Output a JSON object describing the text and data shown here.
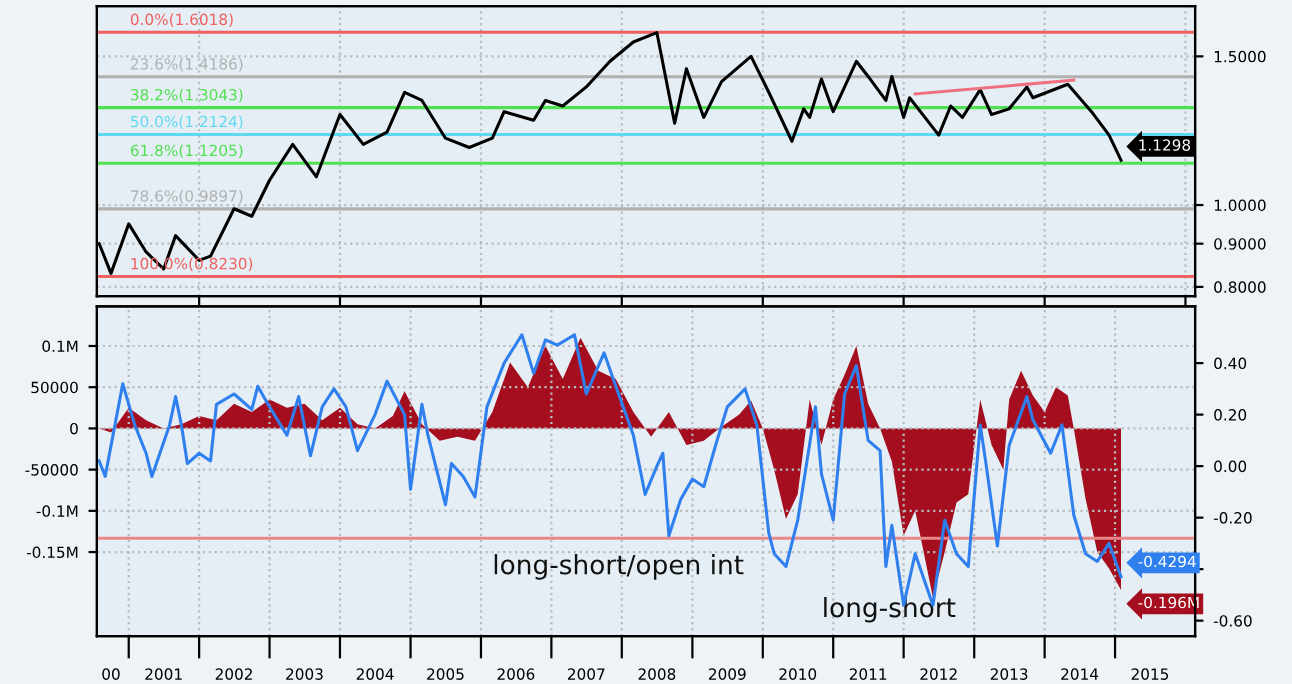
{
  "chart_data": [
    {
      "type": "line",
      "x": [
        "2000-08",
        "2000-10",
        "2001-01",
        "2001-04",
        "2001-07",
        "2001-09",
        "2002-01",
        "2002-03",
        "2002-07",
        "2002-10",
        "2003-01",
        "2003-05",
        "2003-09",
        "2004-01",
        "2004-05",
        "2004-09",
        "2004-12",
        "2005-03",
        "2005-07",
        "2005-11",
        "2006-03",
        "2006-05",
        "2006-10",
        "2006-12",
        "2007-03",
        "2007-07",
        "2007-11",
        "2008-03",
        "2008-07",
        "2008-10",
        "2008-12",
        "2009-03",
        "2009-06",
        "2009-11",
        "2010-02",
        "2010-06",
        "2010-08",
        "2010-09",
        "2010-11",
        "2011-01",
        "2011-05",
        "2011-07",
        "2011-10",
        "2011-11",
        "2012-01",
        "2012-02",
        "2012-07",
        "2012-09",
        "2012-11",
        "2013-02",
        "2013-04",
        "2013-07",
        "2013-10",
        "2013-11",
        "2014-05",
        "2014-09",
        "2014-12",
        "2015-02"
      ],
      "series": [
        {
          "color": "#000000",
          "axis": "y2",
          "values": [
            0.9,
            0.83,
            0.95,
            0.88,
            0.84,
            0.92,
            0.86,
            0.87,
            0.99,
            0.97,
            1.07,
            1.18,
            1.08,
            1.28,
            1.18,
            1.22,
            1.36,
            1.33,
            1.2,
            1.17,
            1.2,
            1.29,
            1.26,
            1.33,
            1.31,
            1.38,
            1.48,
            1.56,
            1.6,
            1.25,
            1.45,
            1.27,
            1.4,
            1.5,
            1.36,
            1.19,
            1.3,
            1.27,
            1.41,
            1.29,
            1.48,
            1.42,
            1.33,
            1.42,
            1.27,
            1.34,
            1.21,
            1.31,
            1.27,
            1.37,
            1.28,
            1.3,
            1.38,
            1.34,
            1.39,
            1.29,
            1.21,
            1.1298
          ],
          "value_labels": [
            null,
            null,
            null,
            null,
            null,
            null,
            null,
            null,
            null,
            null,
            null,
            null,
            null,
            null,
            null,
            null,
            null,
            null,
            null,
            null,
            null,
            null,
            null,
            null,
            null,
            null,
            null,
            null,
            null,
            null,
            null,
            null,
            null,
            null,
            null,
            null,
            null,
            null,
            null,
            null,
            null,
            null,
            null,
            null,
            null,
            null,
            null,
            null,
            null,
            null,
            null,
            null,
            null,
            null,
            null,
            null,
            null,
            "1.1298"
          ]
        },
        {
          "type": "line",
          "color": "#f07080",
          "axis": "y2",
          "x": [
            "2012-03",
            "2014-06"
          ],
          "values": [
            1.354,
            1.406
          ]
        }
      ],
      "xlim": [
        "2000-07-20",
        "2016-02-20"
      ],
      "xticks": [
        {
          "value": "2002-01-01",
          "label": null
        },
        {
          "value": "2004-01-01",
          "label": null
        },
        {
          "value": "2006-01-01",
          "label": null
        },
        {
          "value": "2008-01-01",
          "label": null
        },
        {
          "value": "2010-01-01",
          "label": null
        },
        {
          "value": "2012-01-01",
          "label": null
        },
        {
          "value": "2014-01-01",
          "label": null
        },
        {
          "value": "2016-01-01",
          "label": null
        }
      ],
      "log": "y2",
      "y2lim": [
        0.78,
        1.72
      ],
      "y2ticks": [
        {
          "value": 0.8,
          "label": "0.8000"
        },
        {
          "value": 0.9,
          "label": "0.9000"
        },
        {
          "value": 1.0,
          "label": "1.0000"
        },
        {
          "value": 1.5,
          "label": "1.5000"
        }
      ],
      "ref_lines": [
        {
          "axis": "y2",
          "value": 1.6018,
          "label": "0.0%(1.6018)",
          "color": "#f06060"
        },
        {
          "axis": "y2",
          "value": 1.4186,
          "label": "23.6%(1.4186)",
          "color": "#b0b0b0"
        },
        {
          "axis": "y2",
          "value": 1.3043,
          "label": "38.2%(1.3043)",
          "color": "#50e050"
        },
        {
          "axis": "y2",
          "value": 1.2124,
          "label": "50.0%(1.2124)",
          "color": "#60d8f0"
        },
        {
          "axis": "y2",
          "value": 1.1205,
          "label": "61.8%(1.1205)",
          "color": "#50e050"
        },
        {
          "axis": "y2",
          "value": 0.9897,
          "label": "78.6%(0.9897)",
          "color": "#b0b0b0"
        },
        {
          "axis": "y2",
          "value": 0.823,
          "label": "100.0%(0.8230)",
          "color": "#f06060"
        }
      ],
      "grid": true,
      "tick_labels": "y"
    },
    {
      "type": "area",
      "series": [
        {
          "name": "long-short",
          "color": "#a50e1f",
          "x": [
            "2000-08",
            "2000-10",
            "2001-01",
            "2001-04",
            "2001-07",
            "2001-10",
            "2002-01",
            "2002-04",
            "2002-07",
            "2002-10",
            "2003-01",
            "2003-04",
            "2003-07",
            "2003-10",
            "2004-01",
            "2004-04",
            "2004-07",
            "2004-10",
            "2004-12",
            "2005-03",
            "2005-06",
            "2005-09",
            "2005-12",
            "2006-03",
            "2006-06",
            "2006-09",
            "2006-12",
            "2007-03",
            "2007-06",
            "2007-09",
            "2007-12",
            "2008-03",
            "2008-06",
            "2008-09",
            "2008-12",
            "2009-03",
            "2009-06",
            "2009-09",
            "2009-11",
            "2010-01",
            "2010-03",
            "2010-05",
            "2010-07",
            "2010-09",
            "2010-11",
            "2011-01",
            "2011-03",
            "2011-05",
            "2011-07",
            "2011-09",
            "2011-11",
            "2012-01",
            "2012-03",
            "2012-06",
            "2012-08",
            "2012-10",
            "2012-12",
            "2013-02",
            "2013-04",
            "2013-06",
            "2013-07",
            "2013-09",
            "2013-11",
            "2014-01",
            "2014-03",
            "2014-05",
            "2014-06",
            "2014-08",
            "2014-10",
            "2014-12",
            "2015-02"
          ],
          "values": [
            0,
            -5000,
            25000,
            10000,
            0,
            5000,
            15000,
            10000,
            30000,
            20000,
            35000,
            25000,
            30000,
            10000,
            25000,
            5000,
            0,
            15000,
            45000,
            5000,
            -15000,
            -10000,
            -15000,
            20000,
            80000,
            50000,
            100000,
            60000,
            110000,
            70000,
            60000,
            20000,
            -10000,
            20000,
            -20000,
            -15000,
            2000,
            17000,
            34000,
            0,
            -50000,
            -110000,
            -80000,
            35000,
            -20000,
            35000,
            65000,
            100000,
            30000,
            0,
            -40000,
            -130000,
            -100000,
            -205000,
            -150000,
            -90000,
            -80000,
            35000,
            -20000,
            -50000,
            35000,
            70000,
            40000,
            20000,
            50000,
            40000,
            0,
            -85000,
            -150000,
            -170000,
            -196000
          ],
          "value_labels": [
            null,
            null,
            null,
            null,
            null,
            null,
            null,
            null,
            null,
            null,
            null,
            null,
            null,
            null,
            null,
            null,
            null,
            null,
            null,
            null,
            null,
            null,
            null,
            null,
            null,
            null,
            null,
            null,
            null,
            null,
            null,
            null,
            null,
            null,
            null,
            null,
            null,
            null,
            null,
            null,
            null,
            null,
            null,
            null,
            null,
            null,
            null,
            null,
            null,
            null,
            null,
            null,
            null,
            null,
            null,
            null,
            null,
            null,
            null,
            null,
            null,
            null,
            null,
            null,
            null,
            null,
            null,
            null,
            null,
            null,
            "-0.196M"
          ]
        },
        {
          "name": "long-short/open int",
          "type": "line",
          "color": "#2f80ee",
          "axis": "y2",
          "x": [
            "2000-08",
            "2000-09",
            "2000-12",
            "2001-02",
            "2001-04",
            "2001-05",
            "2001-08",
            "2001-09",
            "2001-10",
            "2001-11",
            "2002-01",
            "2002-03",
            "2002-04",
            "2002-07",
            "2002-10",
            "2002-11",
            "2003-01",
            "2003-04",
            "2003-06",
            "2003-08",
            "2003-10",
            "2003-12",
            "2004-02",
            "2004-04",
            "2004-07",
            "2004-09",
            "2004-12",
            "2005-01",
            "2005-03",
            "2005-04",
            "2005-07",
            "2005-08",
            "2005-10",
            "2005-12",
            "2006-02",
            "2006-05",
            "2006-08",
            "2006-10",
            "2006-12",
            "2007-02",
            "2007-05",
            "2007-07",
            "2007-10",
            "2007-12",
            "2008-03",
            "2008-05",
            "2008-07",
            "2008-08",
            "2008-09",
            "2008-11",
            "2009-01",
            "2009-03",
            "2009-05",
            "2009-07",
            "2009-10",
            "2009-12",
            "2010-02",
            "2010-03",
            "2010-05",
            "2010-07",
            "2010-10",
            "2010-11",
            "2011-01",
            "2011-03",
            "2011-05",
            "2011-07",
            "2011-09",
            "2011-10",
            "2011-11",
            "2012-01",
            "2012-03",
            "2012-06",
            "2012-08",
            "2012-10",
            "2012-12",
            "2013-02",
            "2013-03",
            "2013-05",
            "2013-07",
            "2013-10",
            "2013-11",
            "2014-02",
            "2014-04",
            "2014-06",
            "2014-08",
            "2014-10",
            "2014-12",
            "2015-02"
          ],
          "values": [
            0.02,
            -0.04,
            0.32,
            0.16,
            0.05,
            -0.04,
            0.16,
            0.27,
            0.16,
            0.01,
            0.05,
            0.02,
            0.24,
            0.28,
            0.22,
            0.31,
            0.23,
            0.12,
            0.27,
            0.04,
            0.23,
            0.3,
            0.23,
            0.06,
            0.2,
            0.33,
            0.2,
            -0.09,
            0.24,
            0.12,
            -0.15,
            0.01,
            -0.04,
            -0.12,
            0.23,
            0.4,
            0.51,
            0.36,
            0.49,
            0.47,
            0.51,
            0.28,
            0.44,
            0.31,
            0.12,
            -0.11,
            0.0,
            0.05,
            -0.27,
            -0.13,
            -0.05,
            -0.08,
            0.08,
            0.23,
            0.3,
            0.16,
            -0.26,
            -0.34,
            -0.39,
            -0.21,
            0.23,
            -0.03,
            -0.21,
            0.28,
            0.39,
            0.1,
            0.06,
            -0.39,
            -0.23,
            -0.54,
            -0.34,
            -0.54,
            -0.21,
            -0.34,
            -0.39,
            0.16,
            0.02,
            -0.31,
            0.08,
            0.27,
            0.18,
            0.05,
            0.16,
            -0.19,
            -0.34,
            -0.37,
            -0.3,
            -0.4294
          ],
          "value_labels": [
            null,
            null,
            null,
            null,
            null,
            null,
            null,
            null,
            null,
            null,
            null,
            null,
            null,
            null,
            null,
            null,
            null,
            null,
            null,
            null,
            null,
            null,
            null,
            null,
            null,
            null,
            null,
            null,
            null,
            null,
            null,
            null,
            null,
            null,
            null,
            null,
            null,
            null,
            null,
            null,
            null,
            null,
            null,
            null,
            null,
            null,
            null,
            null,
            null,
            null,
            null,
            null,
            null,
            null,
            null,
            null,
            null,
            null,
            null,
            null,
            null,
            null,
            null,
            null,
            null,
            null,
            null,
            null,
            null,
            null,
            null,
            null,
            null,
            null,
            null,
            null,
            null,
            null,
            null,
            null,
            null,
            null,
            null,
            null,
            null,
            null,
            null,
            "-0.4294"
          ]
        }
      ],
      "xlim": [
        "2000-07-20",
        "2016-02-20"
      ],
      "xticks": [
        {
          "value": "2000-10-01",
          "label": "00"
        },
        {
          "value": "2001-01-01",
          "label": null
        },
        {
          "value": "2001-07-01",
          "label": "2001"
        },
        {
          "value": "2002-01-01",
          "label": null
        },
        {
          "value": "2002-07-01",
          "label": "2002"
        },
        {
          "value": "2003-01-01",
          "label": null
        },
        {
          "value": "2003-07-01",
          "label": "2003"
        },
        {
          "value": "2004-01-01",
          "label": null
        },
        {
          "value": "2004-07-01",
          "label": "2004"
        },
        {
          "value": "2005-01-01",
          "label": null
        },
        {
          "value": "2005-07-01",
          "label": "2005"
        },
        {
          "value": "2006-01-01",
          "label": null
        },
        {
          "value": "2006-07-01",
          "label": "2006"
        },
        {
          "value": "2007-01-01",
          "label": null
        },
        {
          "value": "2007-07-01",
          "label": "2007"
        },
        {
          "value": "2008-01-01",
          "label": null
        },
        {
          "value": "2008-07-01",
          "label": "2008"
        },
        {
          "value": "2009-01-01",
          "label": null
        },
        {
          "value": "2009-07-01",
          "label": "2009"
        },
        {
          "value": "2010-01-01",
          "label": null
        },
        {
          "value": "2010-07-01",
          "label": "2010"
        },
        {
          "value": "2011-01-01",
          "label": null
        },
        {
          "value": "2011-07-01",
          "label": "2011"
        },
        {
          "value": "2012-01-01",
          "label": null
        },
        {
          "value": "2012-07-01",
          "label": "2012"
        },
        {
          "value": "2013-01-01",
          "label": null
        },
        {
          "value": "2013-07-01",
          "label": "2013"
        },
        {
          "value": "2014-01-01",
          "label": null
        },
        {
          "value": "2014-07-01",
          "label": "2014"
        },
        {
          "value": "2015-01-01",
          "label": null
        },
        {
          "value": "2015-07-01",
          "label": "2015"
        }
      ],
      "ylim": [
        -252000,
        148000
      ],
      "yticks": [
        {
          "value": 100000,
          "label": "0.1M"
        },
        50000,
        0,
        -50000,
        {
          "value": -100000,
          "label": "-0.1M"
        },
        {
          "value": -150000,
          "label": "-0.15M"
        }
      ],
      "y2lim": [
        -0.66,
        0.62
      ],
      "y2ticks": [
        {
          "value": 0.4,
          "label": "0.40"
        },
        {
          "value": 0.2,
          "label": "0.20"
        },
        {
          "value": 0.0,
          "label": "0.00"
        },
        {
          "value": -0.2,
          "label": "-0.20"
        },
        {
          "value": -0.4,
          "label": null
        },
        {
          "value": -0.6,
          "label": "-0.60"
        }
      ],
      "ref_lines": [
        {
          "axis": "y2",
          "value": -0.28,
          "color": "#e88888"
        }
      ],
      "grid": true
    }
  ]
}
